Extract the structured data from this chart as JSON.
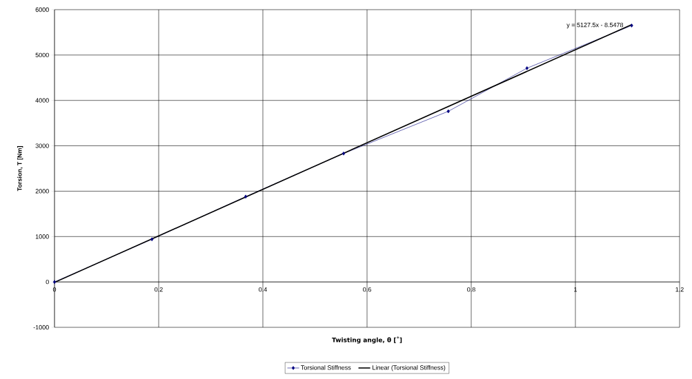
{
  "chart_data": {
    "type": "line",
    "xlabel": "Twisting angle, θ [˚]",
    "ylabel": "Torsion, T [Nm]",
    "x": [
      0,
      0.187,
      0.367,
      0.555,
      0.756,
      0.907,
      1.108
    ],
    "series": [
      {
        "name": "Torsional Stiffness",
        "color": "#000080",
        "marker": "diamond",
        "values": [
          0,
          940,
          1880,
          2830,
          3760,
          4710,
          5650
        ]
      },
      {
        "name": "Linear (Torsional Stiffness)",
        "type": "line",
        "color": "#000000",
        "marker": "none",
        "x": [
          0,
          1.108
        ],
        "values": [
          -10,
          5670
        ]
      }
    ],
    "annotations": [
      "y = 5127.5x - 8.5478"
    ],
    "xlim": [
      0,
      1.2
    ],
    "xticks": [
      0,
      0.2,
      0.4,
      0.6,
      0.8,
      1,
      1.2
    ],
    "ylim": [
      -1000,
      6000
    ],
    "yticks": [
      -1000,
      0,
      1000,
      2000,
      3000,
      4000,
      5000,
      6000
    ],
    "grid": true,
    "legend": "bottom"
  }
}
